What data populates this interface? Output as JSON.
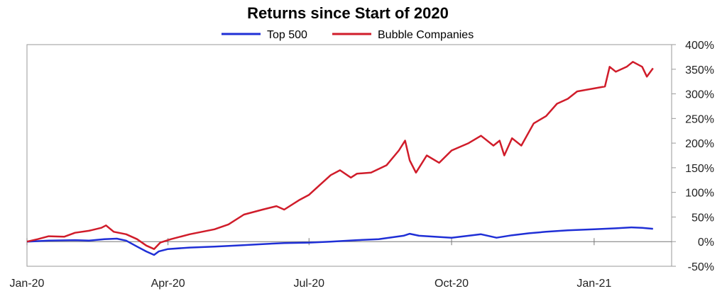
{
  "chart_data": {
    "type": "line",
    "title": "Returns since Start of 2020",
    "xlabel": "",
    "ylabel": "",
    "x_axis": {
      "type": "date",
      "range": [
        "2020-01-01",
        "2021-02-20"
      ],
      "ticks": [
        {
          "date": "2020-01-01",
          "label": "Jan-20"
        },
        {
          "date": "2020-04-01",
          "label": "Apr-20"
        },
        {
          "date": "2020-07-01",
          "label": "Jul-20"
        },
        {
          "date": "2020-10-01",
          "label": "Oct-20"
        },
        {
          "date": "2021-01-01",
          "label": "Jan-21"
        }
      ]
    },
    "y_axis": {
      "position": "right",
      "ylim": [
        -50,
        400
      ],
      "ticks": [
        -50,
        0,
        50,
        100,
        150,
        200,
        250,
        300,
        350,
        400
      ],
      "tick_labels": [
        "-50%",
        "0%",
        "50%",
        "100%",
        "150%",
        "200%",
        "250%",
        "300%",
        "350%",
        "400%"
      ],
      "grid": false
    },
    "zero_line": true,
    "legend_position": "top-center",
    "series": [
      {
        "name": "Top 500",
        "color": "#1f2fd6",
        "points": [
          [
            "2020-01-01",
            0
          ],
          [
            "2020-01-15",
            2
          ],
          [
            "2020-02-01",
            3
          ],
          [
            "2020-02-10",
            2
          ],
          [
            "2020-02-20",
            5
          ],
          [
            "2020-02-28",
            6
          ],
          [
            "2020-03-05",
            2
          ],
          [
            "2020-03-12",
            -10
          ],
          [
            "2020-03-18",
            -20
          ],
          [
            "2020-03-23",
            -27
          ],
          [
            "2020-03-26",
            -20
          ],
          [
            "2020-04-01",
            -15
          ],
          [
            "2020-04-15",
            -12
          ],
          [
            "2020-05-01",
            -10
          ],
          [
            "2020-05-15",
            -8
          ],
          [
            "2020-06-01",
            -5
          ],
          [
            "2020-06-15",
            -3
          ],
          [
            "2020-07-01",
            -2
          ],
          [
            "2020-07-15",
            0
          ],
          [
            "2020-08-01",
            3
          ],
          [
            "2020-08-15",
            5
          ],
          [
            "2020-08-31",
            12
          ],
          [
            "2020-09-04",
            16
          ],
          [
            "2020-09-10",
            12
          ],
          [
            "2020-09-20",
            10
          ],
          [
            "2020-10-01",
            8
          ],
          [
            "2020-10-12",
            12
          ],
          [
            "2020-10-20",
            15
          ],
          [
            "2020-10-30",
            8
          ],
          [
            "2020-11-09",
            13
          ],
          [
            "2020-11-20",
            17
          ],
          [
            "2020-12-01",
            20
          ],
          [
            "2020-12-15",
            23
          ],
          [
            "2021-01-01",
            25
          ],
          [
            "2021-01-15",
            27
          ],
          [
            "2021-01-25",
            29
          ],
          [
            "2021-02-01",
            28
          ],
          [
            "2021-02-08",
            26
          ]
        ]
      },
      {
        "name": "Bubble Companies",
        "color": "#d01c2a",
        "points": [
          [
            "2020-01-01",
            0
          ],
          [
            "2020-01-08",
            5
          ],
          [
            "2020-01-15",
            11
          ],
          [
            "2020-01-25",
            10
          ],
          [
            "2020-02-01",
            18
          ],
          [
            "2020-02-10",
            22
          ],
          [
            "2020-02-18",
            28
          ],
          [
            "2020-02-21",
            33
          ],
          [
            "2020-02-26",
            20
          ],
          [
            "2020-03-05",
            15
          ],
          [
            "2020-03-12",
            5
          ],
          [
            "2020-03-18",
            -8
          ],
          [
            "2020-03-23",
            -15
          ],
          [
            "2020-03-27",
            -2
          ],
          [
            "2020-04-03",
            5
          ],
          [
            "2020-04-15",
            15
          ],
          [
            "2020-05-01",
            25
          ],
          [
            "2020-05-10",
            35
          ],
          [
            "2020-05-20",
            55
          ],
          [
            "2020-06-01",
            65
          ],
          [
            "2020-06-10",
            72
          ],
          [
            "2020-06-15",
            65
          ],
          [
            "2020-06-25",
            85
          ],
          [
            "2020-07-01",
            95
          ],
          [
            "2020-07-08",
            115
          ],
          [
            "2020-07-15",
            135
          ],
          [
            "2020-07-21",
            145
          ],
          [
            "2020-07-28",
            130
          ],
          [
            "2020-08-01",
            138
          ],
          [
            "2020-08-10",
            140
          ],
          [
            "2020-08-20",
            155
          ],
          [
            "2020-08-28",
            185
          ],
          [
            "2020-09-01",
            205
          ],
          [
            "2020-09-04",
            165
          ],
          [
            "2020-09-08",
            140
          ],
          [
            "2020-09-15",
            175
          ],
          [
            "2020-09-23",
            160
          ],
          [
            "2020-10-01",
            185
          ],
          [
            "2020-10-12",
            200
          ],
          [
            "2020-10-20",
            215
          ],
          [
            "2020-10-28",
            195
          ],
          [
            "2020-11-01",
            205
          ],
          [
            "2020-11-04",
            175
          ],
          [
            "2020-11-09",
            210
          ],
          [
            "2020-11-15",
            195
          ],
          [
            "2020-11-23",
            240
          ],
          [
            "2020-12-01",
            255
          ],
          [
            "2020-12-08",
            280
          ],
          [
            "2020-12-15",
            290
          ],
          [
            "2020-12-21",
            305
          ],
          [
            "2020-12-30",
            310
          ],
          [
            "2021-01-08",
            315
          ],
          [
            "2021-01-11",
            355
          ],
          [
            "2021-01-15",
            345
          ],
          [
            "2021-01-22",
            355
          ],
          [
            "2021-01-26",
            365
          ],
          [
            "2021-02-01",
            355
          ],
          [
            "2021-02-04",
            335
          ],
          [
            "2021-02-08",
            352
          ]
        ]
      }
    ]
  }
}
